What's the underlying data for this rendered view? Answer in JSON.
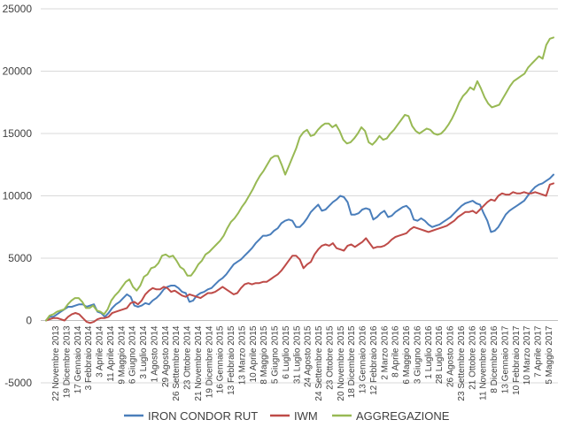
{
  "chart_data": {
    "type": "line",
    "ylim": [
      -5000,
      25000
    ],
    "yticks": [
      -5000,
      0,
      5000,
      10000,
      15000,
      20000,
      25000
    ],
    "grid": true,
    "legend_position": "bottom",
    "x_tick_labels": [
      "22 Novembre 2013",
      "19 Dicembre 2013",
      "17 Gennaio 2014",
      "3 Febbraio 2014",
      "3 Aprile 2014",
      "11 Aprile 2014",
      "9 Maggio 2014",
      "6 Giugno 2014",
      "3 Luglio 2014",
      "1 Agosto 2014",
      "29 Agosto 2014",
      "26 Settembre 2014",
      "23 Ottobre 2014",
      "21 Novembre 2014",
      "19 Dicembre 2014",
      "16 Gennaio 2015",
      "13 Febbraio 2015",
      "13 Marzo 2015",
      "10 Aprile 2015",
      "8 Maggio 2015",
      "5 Giugno 2015",
      "6 Luglio 2015",
      "31 Luglio 2015",
      "24 Agosto 2015",
      "24 Settembre 2015",
      "23 Ottobre 2015",
      "20 Novembre 2015",
      "18 Dicembre 2015",
      "13 Gennaio 2016",
      "12 Febbraio 2016",
      "2 Marzo 2016",
      "8 Aprile 2016",
      "6 Maggio 2016",
      "3 Giugno 2016",
      "1 Luglio 2016",
      "28 Luglio 2016",
      "26 Agosto 2016",
      "23 Settembre 2016",
      "21 Ottobre 2016",
      "11 Novembre 2016",
      "8 Dicembre 2016",
      "13 Gennaio 2017",
      "10 Febbraio 2017",
      "10 Marzo 2017",
      "7 Aprile 2017",
      "5 Maggio 2017"
    ],
    "series": [
      {
        "name": "IRON CONDOR RUT",
        "color": "#4a7ebb",
        "values": [
          0,
          300,
          300,
          500,
          700,
          900,
          1100,
          1100,
          1200,
          1300,
          1300,
          1100,
          1200,
          1300,
          700,
          600,
          300,
          600,
          1000,
          1300,
          1500,
          1800,
          2100,
          1900,
          1200,
          1100,
          1200,
          1400,
          1300,
          1600,
          1800,
          2100,
          2500,
          2700,
          2800,
          2800,
          2600,
          2300,
          2200,
          1500,
          1600,
          2000,
          2200,
          2300,
          2500,
          2600,
          2900,
          3200,
          3400,
          3700,
          4100,
          4500,
          4700,
          4900,
          5200,
          5500,
          5800,
          6200,
          6500,
          6800,
          6800,
          6900,
          7200,
          7400,
          7800,
          8000,
          8100,
          8000,
          7500,
          7500,
          7800,
          8200,
          8700,
          9000,
          9300,
          8800,
          8900,
          9200,
          9500,
          9700,
          10000,
          9900,
          9500,
          8500,
          8500,
          8600,
          8900,
          9000,
          8900,
          8100,
          8300,
          8600,
          8800,
          8300,
          8400,
          8700,
          8900,
          9100,
          9200,
          8900,
          8100,
          8000,
          8200,
          8000,
          7700,
          7500,
          7600,
          7700,
          7900,
          8100,
          8300,
          8600,
          8900,
          9200,
          9400,
          9500,
          9600,
          9400,
          9300,
          8600,
          8000,
          7100,
          7200,
          7500,
          8000,
          8500,
          8800,
          9000,
          9200,
          9400,
          9600,
          10000,
          10400,
          10700,
          10900,
          11000,
          11200,
          11400,
          11700
        ]
      },
      {
        "name": "IWM",
        "color": "#be4b48",
        "values": [
          0,
          100,
          200,
          200,
          100,
          0,
          300,
          500,
          600,
          500,
          200,
          -100,
          -200,
          -100,
          100,
          200,
          200,
          300,
          600,
          700,
          800,
          900,
          1000,
          1400,
          1500,
          1300,
          1600,
          2100,
          2400,
          2600,
          2500,
          2500,
          2700,
          2600,
          2300,
          2400,
          2200,
          2000,
          1900,
          2100,
          2000,
          1900,
          1800,
          2000,
          2200,
          2200,
          2300,
          2500,
          2700,
          2500,
          2300,
          2100,
          2200,
          2600,
          2900,
          3000,
          2900,
          3000,
          3000,
          3100,
          3100,
          3300,
          3500,
          3700,
          4000,
          4400,
          4800,
          5200,
          5200,
          4900,
          4200,
          4500,
          4700,
          5300,
          5700,
          6000,
          6100,
          6000,
          6200,
          5800,
          5700,
          5600,
          6000,
          6100,
          5900,
          6100,
          6300,
          6600,
          6200,
          5800,
          5900,
          5900,
          6000,
          6200,
          6500,
          6700,
          6800,
          6900,
          7000,
          7300,
          7500,
          7400,
          7300,
          7200,
          7100,
          7200,
          7300,
          7400,
          7500,
          7600,
          7800,
          8000,
          8300,
          8500,
          8700,
          8700,
          8800,
          8600,
          8900,
          9200,
          9500,
          9700,
          9600,
          10000,
          10200,
          10100,
          10100,
          10300,
          10200,
          10200,
          10300,
          10200,
          10200,
          10300,
          10200,
          10100,
          10000,
          10900,
          11000
        ]
      },
      {
        "name": "AGGREGAZIONE",
        "color": "#98b954",
        "values": [
          0,
          400,
          500,
          700,
          800,
          900,
          1300,
          1600,
          1800,
          1800,
          1500,
          1000,
          1000,
          1200,
          800,
          700,
          500,
          900,
          1600,
          2000,
          2300,
          2700,
          3100,
          3300,
          2700,
          2400,
          2800,
          3500,
          3700,
          4200,
          4300,
          4600,
          5200,
          5300,
          5100,
          5200,
          4800,
          4300,
          4100,
          3600,
          3600,
          4000,
          4500,
          4800,
          5300,
          5500,
          5800,
          6100,
          6400,
          6800,
          7400,
          7900,
          8200,
          8600,
          9100,
          9500,
          10000,
          10500,
          11100,
          11600,
          12000,
          12500,
          13000,
          13200,
          13200,
          12500,
          11700,
          12400,
          13100,
          13800,
          14700,
          15100,
          15300,
          14800,
          14900,
          15300,
          15600,
          15800,
          15800,
          15500,
          15700,
          15200,
          14500,
          14200,
          14300,
          14600,
          15000,
          15500,
          15200,
          14300,
          14100,
          14400,
          14800,
          14500,
          14600,
          15000,
          15300,
          15700,
          16100,
          16500,
          16400,
          15600,
          15200,
          15000,
          15200,
          15400,
          15300,
          15000,
          14900,
          15000,
          15300,
          15700,
          16200,
          16800,
          17500,
          18000,
          18300,
          18700,
          18500,
          19200,
          18600,
          17900,
          17400,
          17100,
          17200,
          17300,
          17800,
          18300,
          18800,
          19200,
          19400,
          19600,
          19800,
          20300,
          20600,
          20900,
          21200,
          21000,
          22100,
          22600,
          22700
        ]
      }
    ]
  }
}
